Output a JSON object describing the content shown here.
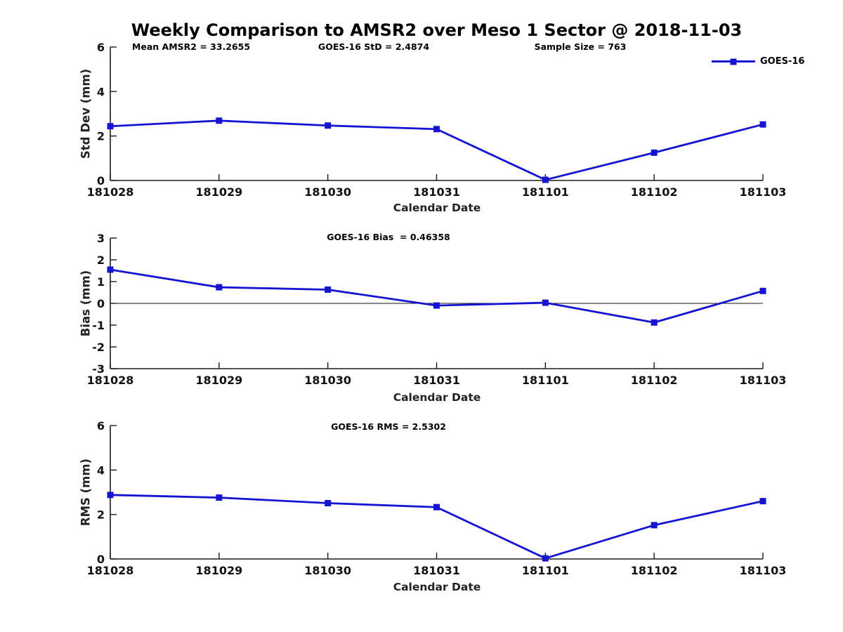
{
  "title": "Weekly Comparison to AMSR2 over Meso 1 Sector @ 2018-11-03",
  "accent_color": "#1414d2",
  "chart_data": [
    {
      "type": "line",
      "title": "",
      "categories": [
        "181028",
        "181029",
        "181030",
        "181031",
        "181101",
        "181102",
        "181103"
      ],
      "series": [
        {
          "name": "GOES-16",
          "color": "#1414d2",
          "values": [
            2.44,
            2.69,
            2.47,
            2.31,
            0.03,
            1.25,
            2.52
          ]
        }
      ],
      "xlabel": "Calendar Date",
      "ylabel": "Std Dev (mm)",
      "ylim": [
        0,
        6
      ],
      "yticks": [
        0,
        2,
        4,
        6
      ],
      "grid": false,
      "zero_line": false,
      "legend": {
        "label": "GOES-16",
        "position": "northeast"
      },
      "annotations": [
        "Mean AMSR2 = 33.2655",
        "GOES-16 StD = 2.4874",
        "Sample Size = 763"
      ]
    },
    {
      "type": "line",
      "title": "GOES-16 Bias  = 0.46358",
      "categories": [
        "181028",
        "181029",
        "181030",
        "181031",
        "181101",
        "181102",
        "181103"
      ],
      "series": [
        {
          "name": "GOES-16",
          "color": "#1414d2",
          "values": [
            1.55,
            0.74,
            0.63,
            -0.1,
            0.03,
            -0.88,
            0.57
          ]
        }
      ],
      "xlabel": "Calendar Date",
      "ylabel": "Bias (mm)",
      "ylim": [
        -3,
        3
      ],
      "yticks": [
        -3,
        -2,
        -1,
        0,
        1,
        2,
        3
      ],
      "grid": false,
      "zero_line": true,
      "annotations": []
    },
    {
      "type": "line",
      "title": "GOES-16 RMS = 2.5302",
      "categories": [
        "181028",
        "181029",
        "181030",
        "181031",
        "181101",
        "181102",
        "181103"
      ],
      "series": [
        {
          "name": "GOES-16",
          "color": "#1414d2",
          "values": [
            2.88,
            2.76,
            2.51,
            2.33,
            0.03,
            1.52,
            2.6
          ]
        }
      ],
      "xlabel": "Calendar Date",
      "ylabel": "RMS (mm)",
      "ylim": [
        0,
        6
      ],
      "yticks": [
        0,
        2,
        4,
        6
      ],
      "grid": false,
      "zero_line": false,
      "annotations": []
    }
  ]
}
